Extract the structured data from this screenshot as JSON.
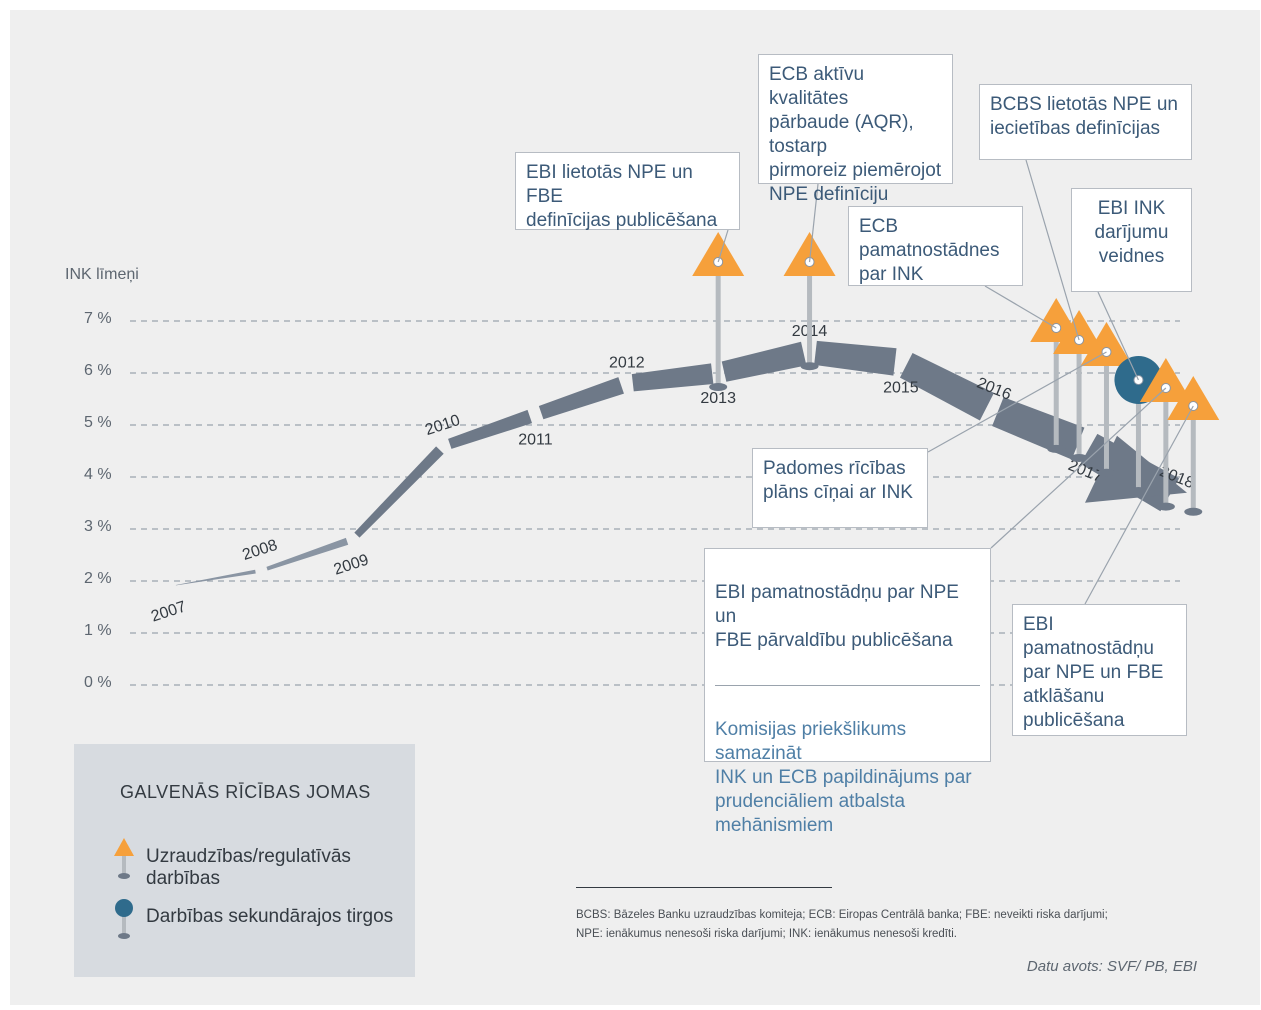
{
  "colors": {
    "background": "#efefef",
    "ribbon": "#8a95a3",
    "ribbon_dark": "#6e7988",
    "orange": "#f6a03b",
    "blue": "#2f6b8c",
    "stem": "#b5babf",
    "text_blue": "#3c5a78",
    "grid": "#9aa3ad"
  },
  "chart_data": {
    "type": "line",
    "ylabel": "INK līmeņi",
    "yticks": [
      "7 %",
      "6 %",
      "5 %",
      "4 %",
      "3 %",
      "2 %",
      "1 %",
      "0 %"
    ],
    "ylim": [
      0,
      7
    ],
    "grid": true,
    "series": [
      {
        "x": [
          "2007",
          "2008",
          "2009",
          "2010",
          "2011",
          "2012",
          "2013",
          "2014",
          "2015",
          "2016",
          "2017",
          "2018"
        ],
        "values": [
          1.9,
          2.2,
          2.8,
          4.6,
          5.2,
          5.8,
          6.0,
          6.4,
          6.2,
          5.3,
          4.6,
          3.6
        ]
      }
    ]
  },
  "events": [
    {
      "year": 2013.0,
      "type": "supervisory",
      "text": "EBI lietotās NPE un FBE\ndefinīcijas publicēšana"
    },
    {
      "year": 2014.0,
      "type": "supervisory",
      "text": "ECB aktīvu kvalitātes\npārbaude (AQR), tostarp\npirmoreiz piemērojot\nNPE definīciju"
    },
    {
      "year": 2016.7,
      "type": "supervisory",
      "text": "ECB pamatnostādnes\npar INK"
    },
    {
      "year": 2016.95,
      "type": "supervisory",
      "text": "BCBS lietotās NPE un\niecietības definīcijas"
    },
    {
      "year": 2017.25,
      "type": "supervisory",
      "text": "Padomes rīcības\nplāns cīņai ar INK"
    },
    {
      "year": 2017.6,
      "type": "secondary",
      "text": "EBI INK\ndarījumu\nveidnes"
    },
    {
      "year": 2017.9,
      "type": "supervisory",
      "text": "EBI pamatnostādņu par NPE un\nFBE pārvaldību publicēšana"
    },
    {
      "year": 2017.9,
      "type": "supervisory",
      "text": "Komisijas priekšlikums samazināt\nINK un ECB papildinājums par\nprudenciāliem atbalsta\nmehānismiem"
    },
    {
      "year": 2018.2,
      "type": "supervisory",
      "text": "EBI pamatnostādņu\npar NPE un FBE\natklāšanu\npublicēšana"
    }
  ],
  "legend": {
    "title": "GALVENĀS RĪCĪBAS JOMAS",
    "items": [
      {
        "icon": "orange-triangle-pin-icon",
        "label": "Uzraudzības/regulatīvās darbības"
      },
      {
        "icon": "blue-circle-pin-icon",
        "label": "Darbības sekundārajos tirgos"
      }
    ]
  },
  "notes": "BCBS: Bāzeles Banku uzraudzības komiteja; ECB: Eiropas Centrālā banka; FBE: neveikti riska darījumi;\nNPE: ienākumus nenesoši riska darījumi; INK: ienākumus nenesoši kredīti.",
  "source": "Datu avots: SVF/ PB, EBI"
}
